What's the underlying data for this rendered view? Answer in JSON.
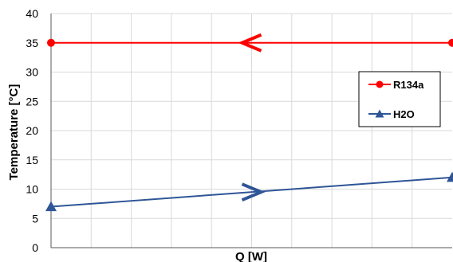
{
  "chart_data": {
    "type": "line",
    "xlabel": "Q [W]",
    "ylabel": "Temperature [°C]",
    "ylim": [
      0,
      40
    ],
    "yticks": [
      0,
      5,
      10,
      15,
      20,
      25,
      30,
      35,
      40
    ],
    "xlim": [
      0,
      1
    ],
    "x_tick_labels_shown": false,
    "grid": true,
    "legend_position": "right",
    "series": [
      {
        "name": "R134a",
        "color": "#ff0000",
        "marker": "circle",
        "x": [
          0,
          1
        ],
        "y": [
          35,
          35
        ],
        "flow_direction": "left"
      },
      {
        "name": "H2O",
        "color": "#2f5597",
        "marker": "triangle",
        "x": [
          0,
          1
        ],
        "y": [
          7,
          12
        ],
        "flow_direction": "right"
      }
    ]
  }
}
